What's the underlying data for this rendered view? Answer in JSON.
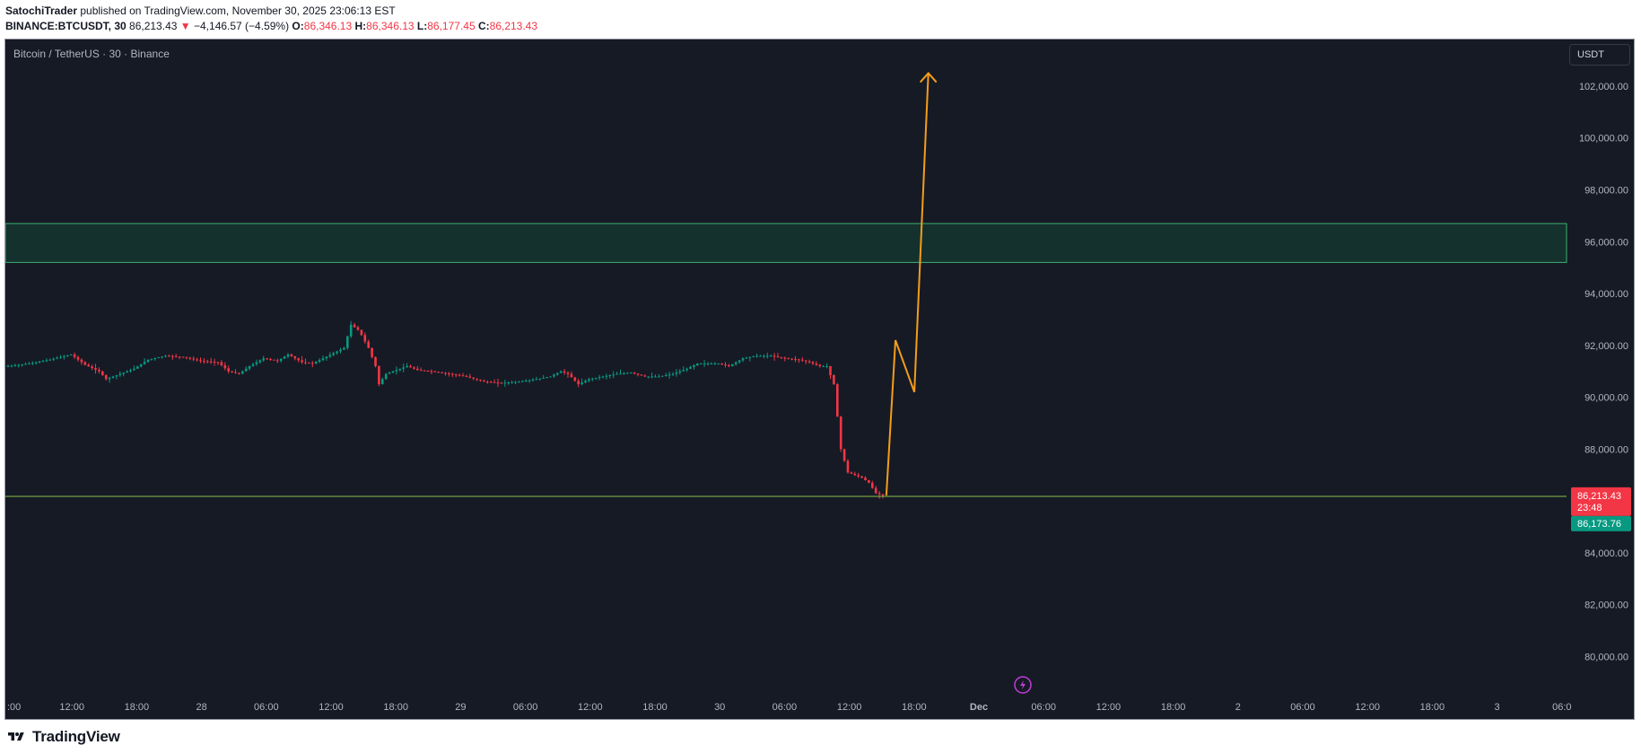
{
  "header": {
    "author": "SatochiTrader",
    "published_text": " published on TradingView.com, November 30, 2025 23:06:13 EST",
    "symbol": "BINANCE:BTCUSDT, 30",
    "last_price": "86,213.43",
    "change_arrow": "▼",
    "change": "−4,146.57 (−4.59%)",
    "o_label": "O:",
    "o_value": "86,346.13",
    "h_label": "H:",
    "h_value": "86,346.13",
    "l_label": "L:",
    "l_value": "86,177.45",
    "c_label": "C:",
    "c_value": "86,213.43"
  },
  "chart": {
    "symbol_title": "Bitcoin / TetherUS · 30 · Binance",
    "currency": "USDT"
  },
  "footer": {
    "brand": "TradingView"
  },
  "colors": {
    "background": "#161a25",
    "up": "#089981",
    "down": "#f23645",
    "projection": "#f59d1a",
    "zone_fill": "#15312e",
    "zone_border": "#3cb371",
    "support_line": "#8bc34a",
    "grid_text": "#b2b5be"
  },
  "chart_data": {
    "type": "candlestick",
    "interval": "30m",
    "y_axis": {
      "range": [
        78800,
        103800
      ],
      "ticks": [
        80000,
        82000,
        84000,
        86000,
        88000,
        90000,
        92000,
        94000,
        96000,
        98000,
        100000,
        102000
      ],
      "tick_labels": [
        "80,000.00",
        "82,000.00",
        "84,000.00",
        "",
        "88,000.00",
        "90,000.00",
        "92,000.00",
        "94,000.00",
        "96,000.00",
        "98,000.00",
        "100,000.00",
        "102,000.00"
      ]
    },
    "x_axis": {
      "tick_labels": [
        ":00",
        "12:00",
        "18:00",
        "28",
        "06:00",
        "12:00",
        "18:00",
        "29",
        "06:00",
        "12:00",
        "18:00",
        "30",
        "06:00",
        "12:00",
        "18:00",
        "Dec",
        "06:00",
        "12:00",
        "18:00",
        "2",
        "06:00",
        "12:00",
        "18:00",
        "3",
        "06:0"
      ],
      "bold_labels": [
        "Dec"
      ]
    },
    "price_path": [
      [
        0,
        91200
      ],
      [
        6,
        91300
      ],
      [
        12,
        91450
      ],
      [
        18,
        91650
      ],
      [
        22,
        91250
      ],
      [
        26,
        91000
      ],
      [
        28,
        90700
      ],
      [
        32,
        90900
      ],
      [
        36,
        91100
      ],
      [
        40,
        91450
      ],
      [
        45,
        91600
      ],
      [
        50,
        91550
      ],
      [
        55,
        91400
      ],
      [
        60,
        91350
      ],
      [
        63,
        91000
      ],
      [
        66,
        90900
      ],
      [
        69,
        91200
      ],
      [
        73,
        91500
      ],
      [
        77,
        91400
      ],
      [
        80,
        91650
      ],
      [
        84,
        91350
      ],
      [
        87,
        91300
      ],
      [
        90,
        91500
      ],
      [
        93,
        91700
      ],
      [
        96,
        91900
      ],
      [
        98,
        92800
      ],
      [
        100,
        92600
      ],
      [
        101,
        92400
      ],
      [
        103,
        91900
      ],
      [
        105,
        91200
      ],
      [
        106,
        90500
      ],
      [
        108,
        90900
      ],
      [
        111,
        91050
      ],
      [
        114,
        91200
      ],
      [
        117,
        91050
      ],
      [
        121,
        91000
      ],
      [
        126,
        90900
      ],
      [
        131,
        90800
      ],
      [
        136,
        90600
      ],
      [
        141,
        90550
      ],
      [
        146,
        90600
      ],
      [
        151,
        90700
      ],
      [
        155,
        90800
      ],
      [
        158,
        91000
      ],
      [
        160,
        90900
      ],
      [
        163,
        90500
      ],
      [
        166,
        90700
      ],
      [
        170,
        90800
      ],
      [
        174,
        90900
      ],
      [
        178,
        90950
      ],
      [
        182,
        90800
      ],
      [
        186,
        90800
      ],
      [
        190,
        90900
      ],
      [
        194,
        91100
      ],
      [
        197,
        91300
      ],
      [
        200,
        91300
      ],
      [
        203,
        91300
      ],
      [
        206,
        91200
      ],
      [
        210,
        91500
      ],
      [
        214,
        91600
      ],
      [
        218,
        91600
      ],
      [
        222,
        91500
      ],
      [
        226,
        91450
      ],
      [
        229,
        91350
      ],
      [
        232,
        91200
      ],
      [
        234,
        91200
      ],
      [
        236,
        90500
      ],
      [
        238,
        88000
      ],
      [
        240,
        87100
      ],
      [
        242,
        87000
      ],
      [
        244,
        86900
      ],
      [
        246,
        86700
      ],
      [
        248,
        86300
      ],
      [
        250,
        86213.43
      ]
    ],
    "last_price": 86213.43,
    "last_price_label": "86,213.43",
    "countdown_label": "23:48",
    "support_price": 86173.76,
    "support_label": "86,173.76",
    "resistance_zone": [
      95200,
      96700
    ],
    "projection": [
      {
        "bar": 251,
        "price": 86213
      },
      {
        "bar": 253.6,
        "price": 92200
      },
      {
        "bar": 259,
        "price": 90200
      },
      {
        "bar": 263,
        "price": 102500
      }
    ]
  }
}
